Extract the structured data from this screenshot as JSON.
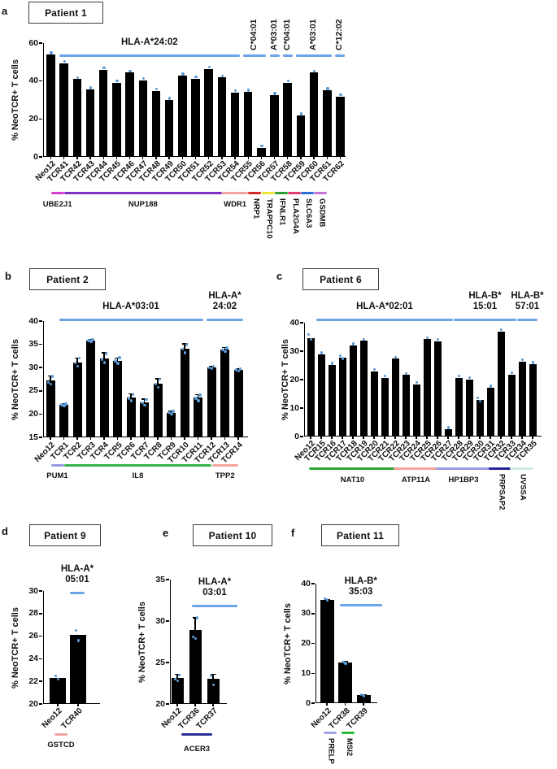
{
  "figure": {
    "background": "#ffffff"
  },
  "colors": {
    "bar": "#000000",
    "axis": "#000000",
    "text": "#111111",
    "hla_line": "#6CA4E8",
    "dot": "#5B9BD5",
    "box_border": "#3c3c3c"
  },
  "chart_data": [
    {
      "id": "a",
      "type": "bar",
      "panel_letter": "a",
      "title": "Patient 1",
      "ylabel": "% NeoTCR+ T cells",
      "ylim": [
        0,
        60
      ],
      "yticks": [
        0,
        20,
        40,
        60
      ],
      "categories": [
        "Neo12",
        "TCR41",
        "TCR42",
        "TCR43",
        "TCR44",
        "TCR45",
        "TCR46",
        "TCR47",
        "TCR48",
        "TCR49",
        "TCR50",
        "TCR51",
        "TCR52",
        "TCR53",
        "TCR54",
        "TCR55",
        "TCR56",
        "TCR57",
        "TCR58",
        "TCR59",
        "TCR60",
        "TCR61",
        "TCR62"
      ],
      "values": [
        54,
        49.5,
        41,
        35.6,
        46,
        39.2,
        44.4,
        40.5,
        34.8,
        30,
        42.8,
        41.2,
        46.4,
        41.8,
        34,
        34.2,
        4.8,
        32.6,
        39.2,
        21.8,
        44.4,
        35.1,
        31.8
      ],
      "errs": null,
      "dots": null,
      "hla_groups": [
        {
          "lines": [
            "HLA-A*24:02"
          ],
          "rotated": false,
          "start": 1,
          "end": 14
        },
        {
          "lines": [
            "C*04:01"
          ],
          "rotated": true,
          "start": 15,
          "end": 16
        },
        {
          "lines": [
            "A*03:01"
          ],
          "rotated": true,
          "start": 17,
          "end": 17
        },
        {
          "lines": [
            "C*04:01"
          ],
          "rotated": true,
          "start": 18,
          "end": 18
        },
        {
          "lines": [
            "A*03:01"
          ],
          "rotated": true,
          "start": 19,
          "end": 21
        },
        {
          "lines": [
            "C*12:02"
          ],
          "rotated": true,
          "start": 22,
          "end": 22
        }
      ],
      "gene_groups": [
        {
          "label": "UBE2J1",
          "start": 1,
          "end": 1,
          "color": "#DA3FD0",
          "vertical": false
        },
        {
          "label": "NUP188",
          "start": 2,
          "end": 13,
          "color": "#7E2FC2",
          "vertical": false
        },
        {
          "label": "WDR1",
          "start": 14,
          "end": 15,
          "color": "#F2A49E",
          "vertical": false
        },
        {
          "label": "NRP1",
          "start": 16,
          "end": 16,
          "color": "#D42B28",
          "vertical": true
        },
        {
          "label": "TRAPPC10",
          "start": 17,
          "end": 17,
          "color": "#EFE434",
          "vertical": true
        },
        {
          "label": "IFNLR1",
          "start": 18,
          "end": 18,
          "color": "#2E9E36",
          "vertical": true
        },
        {
          "label": "PLA2G4A",
          "start": 19,
          "end": 19,
          "color": "#E03A6E",
          "vertical": true
        },
        {
          "label": "SLC6A3",
          "start": 20,
          "end": 20,
          "color": "#2C6FDB",
          "vertical": true
        },
        {
          "label": "GSDMB",
          "start": 21,
          "end": 21,
          "color": "#C673D8",
          "vertical": true
        }
      ]
    },
    {
      "id": "b",
      "type": "bar",
      "panel_letter": "b",
      "title": "Patient 2",
      "ylabel": "% NeoTCR+ T cells",
      "ylim": [
        15,
        40
      ],
      "yticks": [
        15,
        20,
        25,
        30,
        35,
        40
      ],
      "categories": [
        "Neo12",
        "TCR1",
        "TCR2",
        "TCR3",
        "TCR4",
        "TCR5",
        "TCR6",
        "TCR7",
        "TCR8",
        "TCR9",
        "TCR10",
        "TCR11",
        "TCR12",
        "TCR13",
        "TCR14"
      ],
      "values": [
        27.2,
        22.0,
        31.0,
        35.8,
        32.0,
        31.4,
        23.5,
        22.5,
        26.6,
        20.3,
        34.1,
        23.5,
        30.0,
        33.8,
        29.5
      ],
      "errs": [
        1.0,
        0.25,
        1.1,
        0.3,
        1.2,
        0.6,
        0.85,
        0.75,
        1.0,
        0.3,
        1.0,
        0.65,
        0.35,
        0.5,
        0.3
      ],
      "dots": [
        [
          26.5,
          26.8,
          28.1
        ],
        [
          21.8,
          22.0,
          22.2
        ],
        [
          30.3,
          31.0,
          32.0
        ],
        [
          35.6,
          35.8,
          36.0
        ],
        [
          31.1,
          31.8,
          33.0
        ],
        [
          30.9,
          31.4,
          32.1
        ],
        [
          22.9,
          23.4,
          24.2
        ],
        [
          21.9,
          22.4,
          23.1
        ],
        [
          25.7,
          26.5,
          27.5
        ],
        [
          20.0,
          20.3,
          20.6
        ],
        [
          33.2,
          34.0,
          34.9
        ],
        [
          22.9,
          23.4,
          24.1
        ],
        [
          29.8,
          30.0,
          30.3
        ],
        [
          33.4,
          33.8,
          34.2
        ],
        [
          29.2,
          29.5,
          29.7
        ]
      ],
      "hla_groups": [
        {
          "lines": [
            "HLA-A*03:01"
          ],
          "rotated": false,
          "start": 1,
          "end": 11
        },
        {
          "lines": [
            "HLA-A*",
            "24:02"
          ],
          "rotated": false,
          "start": 12,
          "end": 14
        }
      ],
      "gene_groups": [
        {
          "label": "PUM1",
          "start": 1,
          "end": 1,
          "color": "#9898E4",
          "vertical": false
        },
        {
          "label": "IL8",
          "start": 2,
          "end": 12,
          "color": "#35B34A",
          "vertical": false
        },
        {
          "label": "TPP2",
          "start": 13,
          "end": 14,
          "color": "#F2A49E",
          "vertical": false
        }
      ]
    },
    {
      "id": "c",
      "type": "bar",
      "panel_letter": "c",
      "title": "Patient 6",
      "ylabel": "% NeoTCR+ T cells",
      "ylim": [
        0,
        40
      ],
      "yticks": [
        0,
        10,
        20,
        30,
        40
      ],
      "categories": [
        "Neo12",
        "TCR15",
        "TCR16",
        "TCR17",
        "TCR18",
        "TCR19",
        "TCR20",
        "TCR21",
        "TCR22",
        "TCR23",
        "TCR24",
        "TCR25",
        "TCR26",
        "TCR27",
        "TCR28",
        "TCR29",
        "TCR30",
        "TCR31",
        "TCR32",
        "TCR33",
        "TCR34",
        "TCR35"
      ],
      "values": [
        34.7,
        28.8,
        25.1,
        27.6,
        32.0,
        33.6,
        23.0,
        20.6,
        27.3,
        21.6,
        18.4,
        34.2,
        33.5,
        2.5,
        20.6,
        20.1,
        12.8,
        17.1,
        37.0,
        21.8,
        26.4,
        25.4
      ],
      "errs": null,
      "dots": {
        "0": [
          34.2,
          35.9
        ],
        "3": [
          27.4,
          28.5
        ],
        "16": [
          12.5,
          13.6
        ]
      },
      "hla_groups": [
        {
          "lines": [
            "HLA-A*02:01"
          ],
          "rotated": false,
          "start": 1,
          "end": 13
        },
        {
          "lines": [
            "HLA-B*",
            "15:01"
          ],
          "rotated": false,
          "start": 14,
          "end": 19
        },
        {
          "lines": [
            "HLA-B*",
            "57:01"
          ],
          "rotated": false,
          "start": 20,
          "end": 21
        }
      ],
      "gene_groups": [
        {
          "label": "NAT10",
          "start": 1,
          "end": 8,
          "color": "#2BA637",
          "vertical": false
        },
        {
          "label": "ATP11A",
          "start": 9,
          "end": 12,
          "color": "#F2A49E",
          "vertical": false
        },
        {
          "label": "HP1BP3",
          "start": 13,
          "end": 17,
          "color": "#9B9BE4",
          "vertical": false
        },
        {
          "label": "PRPSAP2",
          "start": 18,
          "end": 19,
          "color": "#23239B",
          "vertical": true
        },
        {
          "label": "UVSSA",
          "start": 20,
          "end": 21,
          "color": "#CDEBDD",
          "vertical": true
        }
      ]
    },
    {
      "id": "d",
      "type": "bar",
      "panel_letter": "d",
      "title": "Patient 9",
      "ylabel": "% NeoTCR+ T cells",
      "ylim": [
        20,
        30
      ],
      "yticks": [
        20,
        22,
        24,
        26,
        28,
        30
      ],
      "categories": [
        "Neo12",
        "TCR40"
      ],
      "values": [
        22.3,
        26.1
      ],
      "errs": null,
      "dots": [
        [
          22.2,
          22.5
        ],
        [
          25.6,
          26.5
        ]
      ],
      "hla_groups": [
        {
          "lines": [
            "HLA-A*",
            "05:01"
          ],
          "rotated": false,
          "start": 1,
          "end": 1
        }
      ],
      "gene_groups": [
        {
          "label": "GSTCD",
          "start": 1,
          "end": 1,
          "color": "#F2A49E",
          "vertical": false
        }
      ]
    },
    {
      "id": "e",
      "type": "bar",
      "panel_letter": "e",
      "title": "Patient 10",
      "ylabel": "% NeoTCR+ T cells",
      "ylim": [
        20,
        35
      ],
      "yticks": [
        20,
        25,
        30,
        35
      ],
      "categories": [
        "Neo12",
        "TCR36",
        "TCR37"
      ],
      "values": [
        23.1,
        28.9,
        23.0
      ],
      "errs": [
        0.45,
        1.5,
        0.6
      ],
      "dots": [
        [
          22.8,
          23.0,
          23.5
        ],
        [
          27.9,
          28.1,
          30.4
        ],
        [
          22.3,
          23.4
        ]
      ],
      "hla_groups": [
        {
          "lines": [
            "HLA-A*",
            "03:01"
          ],
          "rotated": false,
          "start": 1,
          "end": 2
        }
      ],
      "gene_groups": [
        {
          "label": "ACER3",
          "start": 1,
          "end": 2,
          "color": "#2B2F96",
          "vertical": false
        }
      ]
    },
    {
      "id": "f",
      "type": "bar",
      "panel_letter": "f",
      "title": "Patient 11",
      "ylabel": "% NeoTCR+ T cells",
      "ylim": [
        0,
        40
      ],
      "yticks": [
        0,
        10,
        20,
        30,
        40
      ],
      "categories": [
        "Neo12",
        "TCR38",
        "TCR39"
      ],
      "values": [
        34.5,
        13.5,
        2.6
      ],
      "errs": [
        0.25,
        0.4,
        0.3
      ],
      "dots": [
        [
          34.6,
          35.0
        ],
        [
          13.3,
          13.8
        ],
        [
          2.4,
          2.9
        ]
      ],
      "hla_groups": [
        {
          "lines": [
            "HLA-B*",
            "35:03"
          ],
          "rotated": false,
          "start": 1,
          "end": 2
        }
      ],
      "gene_groups": [
        {
          "label": "PRELP",
          "start": 1,
          "end": 1,
          "color": "#A3A3E8",
          "vertical": true
        },
        {
          "label": "MSI2",
          "start": 2,
          "end": 2,
          "color": "#2EBA3C",
          "vertical": true
        }
      ]
    }
  ]
}
